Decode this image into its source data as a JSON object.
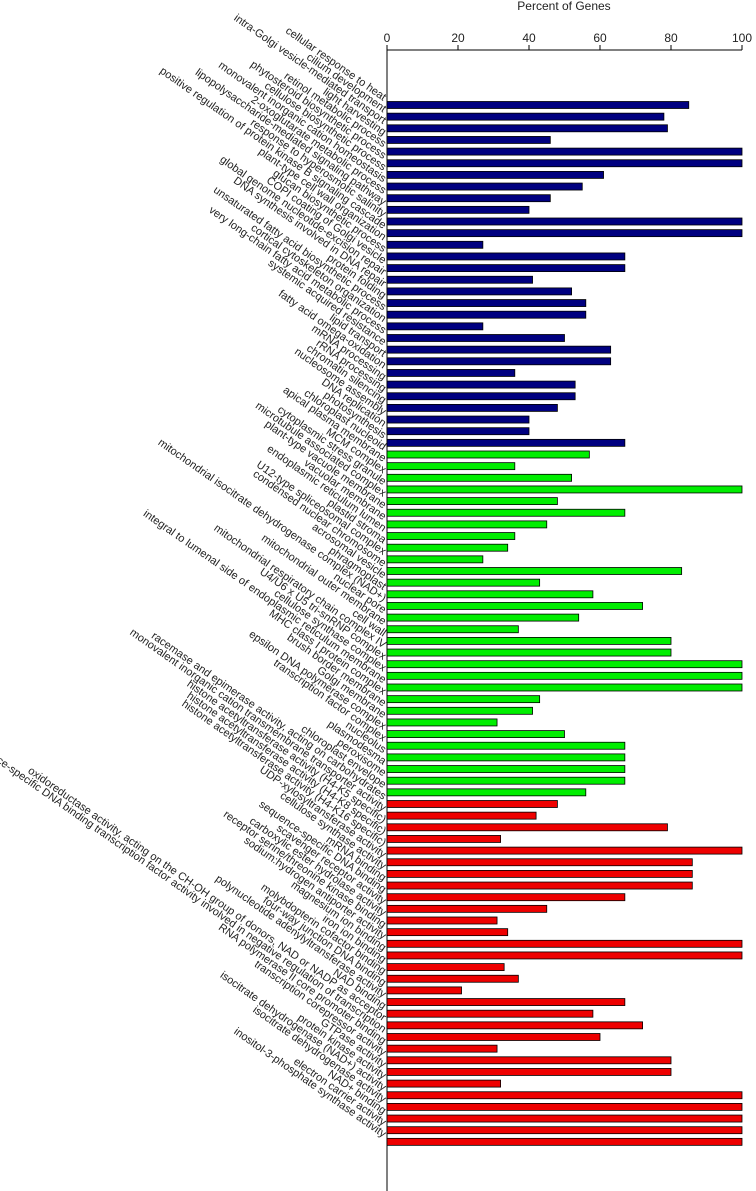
{
  "chart_data": {
    "type": "bar",
    "orientation": "horizontal",
    "x_label": "Percent of Genes",
    "xlim": [
      0,
      100
    ],
    "xticks": [
      0,
      20,
      40,
      60,
      80,
      100
    ],
    "series": [
      {
        "color": "#000080",
        "categories": [
          "cellular response to heat",
          "cilium development",
          "intra-Golgi vesicle-mediated transport",
          "light harvesting",
          "retinol metabolic process",
          "phytosteroid biosynthetic process",
          "cellulose biosynthetic process",
          "monovalent inorganic cation homeostasis",
          "2-oxoglutarate metabolic process",
          "lipopolysaccharide-mediated signaling pathway",
          "response to hyperosmotic salinity",
          "positive regulation of protein kinase B signaling cascade",
          "plant-type cell wall organization",
          "glucan biosynthetic process",
          "COPI coating of Golgi vesicle",
          "global genome nucleotide-excision repair",
          "DNA synthesis involved in DNA repair",
          "protein folding",
          "unsaturated fatty acid biosynthetic process",
          "cortical cytoskeleton organization",
          "very long-chain fatty acid metabolic process",
          "systemic acquired resistance",
          "lipid transport",
          "fatty acid omega-oxidation",
          "mRNA processing",
          "rRNA processing",
          "chromatin silencing",
          "nucleosome assembly",
          "DNA replication",
          "photosynthesis"
        ],
        "values": [
          85,
          78,
          79,
          46,
          100,
          100,
          61,
          55,
          46,
          40,
          100,
          100,
          27,
          67,
          67,
          41,
          52,
          56,
          56,
          27,
          50,
          63,
          63,
          36,
          53,
          53,
          48,
          40,
          40,
          67
        ]
      },
      {
        "color": "#00ee00",
        "categories": [
          "chloroplast nucleoid",
          "apical plasma membrane",
          "MCM complex",
          "cytoplasmic stress granule",
          "microtubule associated complex",
          "plant-type vacuole membrane",
          "vacuolar membrane",
          "endoplasmic reticulum lumen",
          "plastid stroma",
          "U12-type spliceosomal complex",
          "condensed nuclear chromosome",
          "acrosomal vesicle",
          "phragmoplast",
          "mitochondrial isocitrate dehydrogenase complex (NAD+)",
          "nuclear pore",
          "mitochondrial outer membrane",
          "cell wall",
          "mitochondrial respiratory chain complex IV",
          "U4/U6 x U5 tri-snRNP complex",
          "cellulose synthase complex",
          "integral to lumenal side of endoplasmic reticulum membrane",
          "MHC class I protein complex",
          "brush border membrane",
          "Golgi membrane",
          "epsilon DNA polymerase complex",
          "transcription factor complex",
          "nucleolus",
          "plasmodesma",
          "peroxisome",
          "chloroplast envelope"
        ],
        "values": [
          57,
          36,
          52,
          100,
          48,
          67,
          45,
          36,
          34,
          27,
          83,
          43,
          58,
          72,
          54,
          37,
          80,
          80,
          100,
          100,
          100,
          43,
          41,
          31,
          50,
          67,
          67,
          67,
          67,
          56
        ]
      },
      {
        "color": "#ee0000",
        "categories": [
          "racemase and epimerase activity, acting on carbohydrates",
          "monovalent inorganic cation transmembrane transporter activity",
          "histone acetyltransferase activity (H4-K5 specific)",
          "histone acetyltransferase activity (H4-K8 specific)",
          "histone acetyltransferase activity (H4-K16 specific)",
          "UDP-xylosyltransferase activity",
          "cellulose synthase activity",
          "mRNA binding",
          "sequence-specific DNA binding",
          "scavenger receptor activity",
          "carboxylic ester hydrolase activity",
          "receptor serine/threonine kinase binding",
          "sodium:hydrogen antiporter activity",
          "magnesium ion binding",
          "iron ion binding",
          "molybdopterin cofactor binding",
          "four-way junction DNA binding",
          "polynucleotide adenylyltransferase activity",
          "NAD binding",
          "oxidoreductase activity, acting on the CH-OH group of donors, NAD or NADP as acceptor",
          "proximal region sequence-specific DNA binding transcription factor activity involved in negative regulation of transcription",
          "RNA polymerase II core promoter binding",
          "transcription corepressor activity",
          "GTPase activity",
          "protein kinase activity",
          "isocitrate dehydrogenase (NAD+) activity",
          "isocitrate dehydrogenase activity",
          "NAD+ binding",
          "electron carrier activity",
          "inositol-3-phosphate synthase activity"
        ],
        "values": [
          48,
          42,
          79,
          32,
          100,
          86,
          86,
          86,
          67,
          45,
          31,
          34,
          100,
          100,
          33,
          37,
          21,
          67,
          58,
          72,
          60,
          31,
          80,
          80,
          32,
          100,
          100,
          100,
          100,
          100
        ]
      }
    ]
  }
}
